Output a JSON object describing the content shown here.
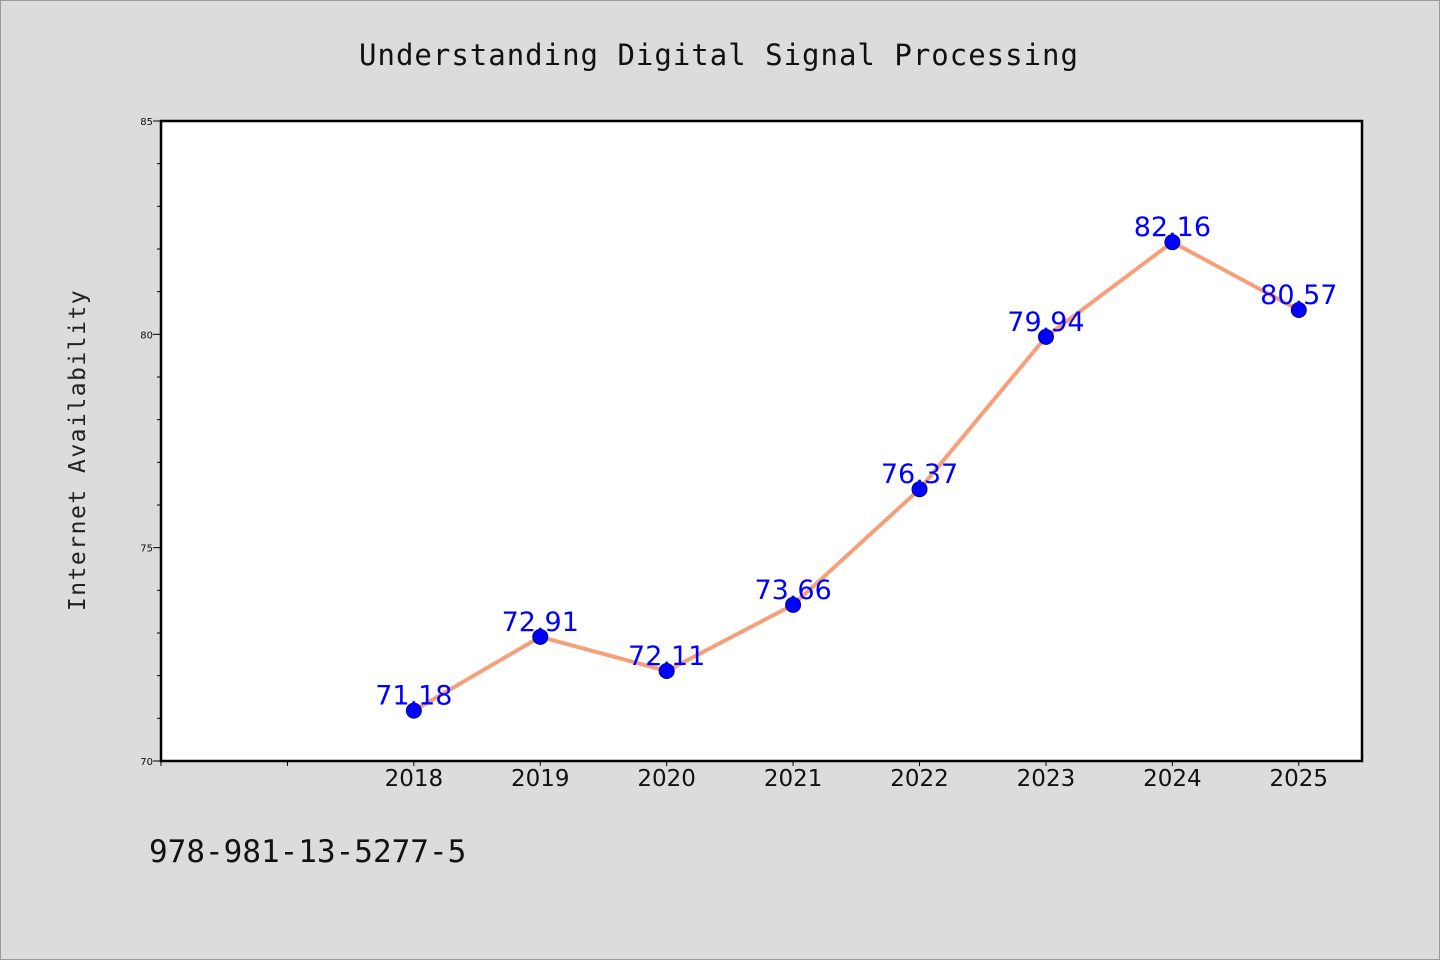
{
  "chart_data": {
    "type": "line",
    "title": "Understanding Digital Signal Processing",
    "xlabel": "",
    "ylabel": "Internet Availability",
    "categories": [
      "2018",
      "2019",
      "2020",
      "2021",
      "2022",
      "2023",
      "2024",
      "2025"
    ],
    "values": [
      71.18,
      72.91,
      72.11,
      73.66,
      76.37,
      79.94,
      82.16,
      80.57
    ],
    "data_labels": [
      "71.18",
      "72.91",
      "72.11",
      "73.66",
      "76.37",
      "79.94",
      "82.16",
      "80.57"
    ],
    "x_range": [
      2016,
      2025.5
    ],
    "ylim": [
      70,
      85
    ],
    "y_ticks": [
      "70",
      "75",
      "80",
      "85"
    ],
    "grid": false,
    "legend": "none",
    "colors": {
      "line": "#f4a07a",
      "marker": "#0000ff",
      "data_label": "#0000ff",
      "plot_background": "#ffffff",
      "page_background": "#dcdcdc"
    }
  },
  "footer": {
    "isbn": "978-981-13-5277-5"
  }
}
